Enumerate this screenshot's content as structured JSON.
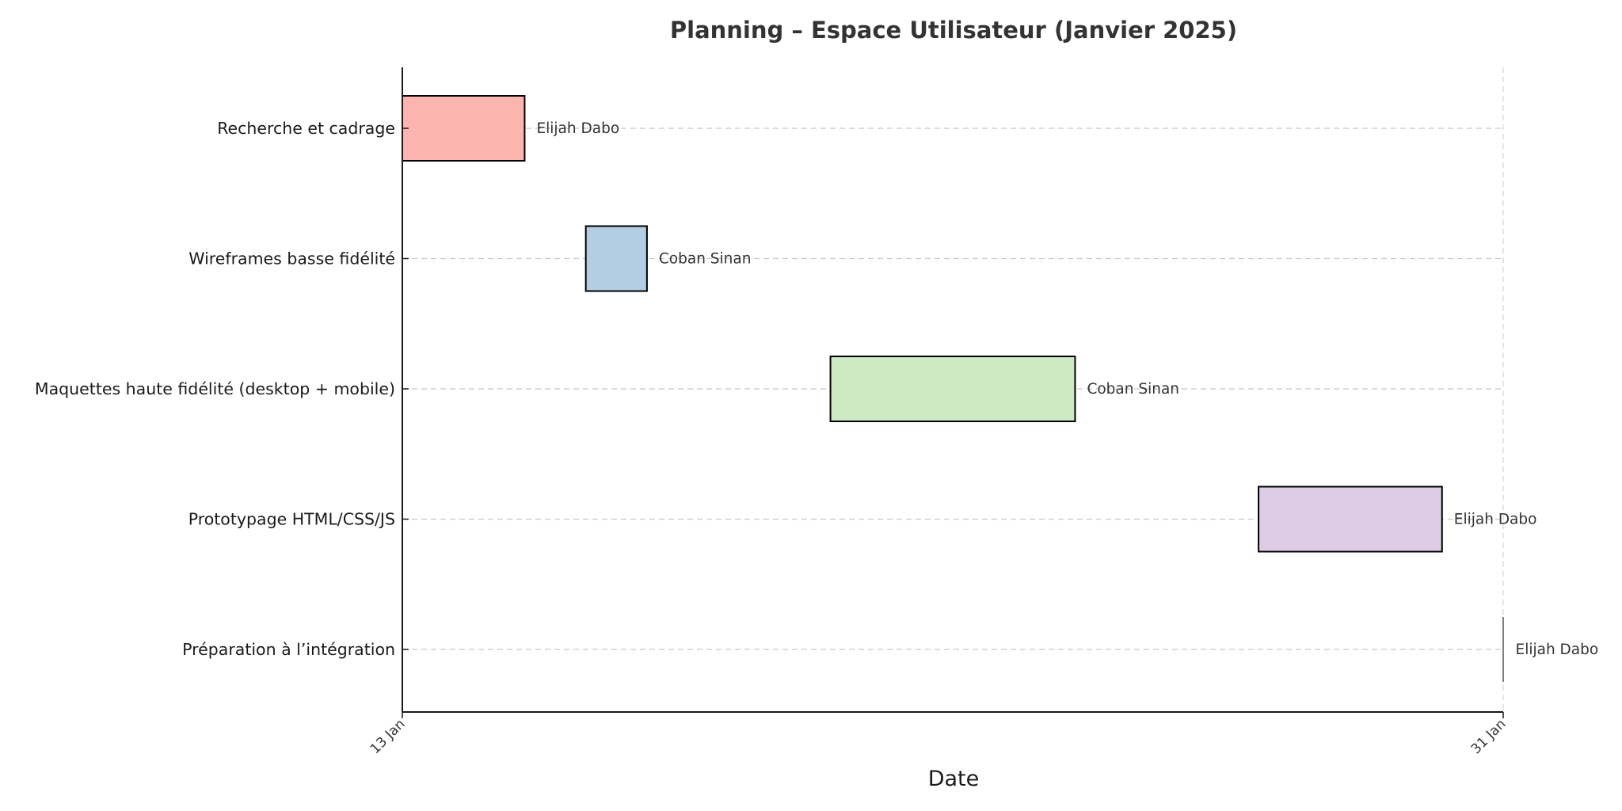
{
  "chart_data": {
    "type": "gantt",
    "title": "Planning – Espace Utilisateur (Janvier 2025)",
    "xlabel": "Date",
    "ylabel": "",
    "x_unit": "day of January 2025",
    "xlim": [
      13,
      31
    ],
    "x_ticks": [
      {
        "value": 13,
        "label": "13 Jan"
      },
      {
        "value": 31,
        "label": "31 Jan"
      }
    ],
    "grid": "horizontal dashed lines at each task",
    "tasks": [
      {
        "name": "Recherche et cadrage",
        "start": 13,
        "end": 15,
        "assignee": "Elijah Dabo",
        "color": "#fbb4ae"
      },
      {
        "name": "Wireframes basse fidélité",
        "start": 16,
        "end": 17,
        "assignee": "Coban Sinan",
        "color": "#b3cde3"
      },
      {
        "name": "Maquettes haute fidélité (desktop + mobile)",
        "start": 20,
        "end": 24,
        "assignee": "Coban Sinan",
        "color": "#ccebc5"
      },
      {
        "name": "Prototypage HTML/CSS/JS",
        "start": 27,
        "end": 30,
        "assignee": "Elijah Dabo",
        "color": "#decbe4"
      },
      {
        "name": "Préparation à l’intégration",
        "start": 31,
        "end": 31,
        "assignee": "Elijah Dabo",
        "color": "#fed9a6"
      }
    ]
  }
}
